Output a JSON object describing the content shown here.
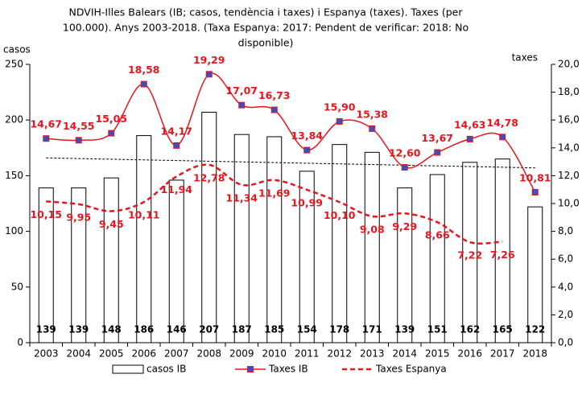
{
  "chart_data": {
    "type": "bar_line",
    "title_lines": [
      "NDVIH-Illes Balears (IB; casos, tendència i taxes) i Espanya (taxes). Taxes (per",
      "100.000). Anys 2003-2018. (Taxa Espanya: 2017: Pendent de verificar: 2018: No",
      "disponible)"
    ],
    "y_label": "casos",
    "y2_label": "taxes",
    "categories": [
      "2003",
      "2004",
      "2005",
      "2006",
      "2007",
      "2008",
      "2009",
      "2010",
      "2011",
      "2012",
      "2013",
      "2014",
      "2015",
      "2016",
      "2017",
      "2018"
    ],
    "ylim": [
      0,
      250
    ],
    "yticks": [
      0,
      50,
      100,
      150,
      200,
      250
    ],
    "y2lim": [
      0,
      20
    ],
    "y2ticks": [
      {
        "value": 0,
        "label": "0,0"
      },
      {
        "value": 2,
        "label": "2,0"
      },
      {
        "value": 4,
        "label": "4,0"
      },
      {
        "value": 6,
        "label": "6,0"
      },
      {
        "value": 8,
        "label": "8,0"
      },
      {
        "value": 10,
        "label": "10,0"
      },
      {
        "value": 12,
        "label": "12,0"
      },
      {
        "value": 14,
        "label": "14,0"
      },
      {
        "value": 16,
        "label": "16,0"
      },
      {
        "value": 18,
        "label": "18,0"
      },
      {
        "value": 20,
        "label": "20,0"
      }
    ],
    "series": [
      {
        "name": "casos IB",
        "kind": "bar",
        "color": "#ffffff",
        "values": [
          139,
          139,
          148,
          186,
          146,
          207,
          187,
          185,
          154,
          178,
          171,
          139,
          151,
          162,
          165,
          122
        ]
      },
      {
        "name": "Taxes IB",
        "kind": "line",
        "axis": "y2",
        "color": "#e8141b",
        "marker_color": "#3b4fc4",
        "dash": false,
        "values": [
          14.67,
          14.55,
          15.05,
          18.58,
          14.17,
          19.29,
          17.07,
          16.73,
          13.84,
          15.9,
          15.38,
          12.6,
          13.67,
          14.63,
          14.78,
          10.81
        ],
        "value_labels": [
          "14,67",
          "14,55",
          "15,05",
          "18,58",
          "14,17",
          "19,29",
          "17,07",
          "16,73",
          "13,84",
          "15,90",
          "15,38",
          "12,60",
          "13,67",
          "14,63",
          "14,78",
          "10,81"
        ]
      },
      {
        "name": "Taxes Espanya",
        "kind": "line",
        "axis": "y2",
        "color": "#e8141b",
        "dash": true,
        "values": [
          10.15,
          9.95,
          9.45,
          10.11,
          11.94,
          12.78,
          11.34,
          11.69,
          10.99,
          10.1,
          9.08,
          9.29,
          8.66,
          7.22,
          7.26,
          null
        ],
        "value_labels": [
          "10,15",
          "9,95",
          "9,45",
          "10,11",
          "11,94",
          "12,78",
          "11,34",
          "11,69",
          "10,99",
          "10,10",
          "9,08",
          "9,29",
          "8,66",
          "7,22",
          "7,26",
          null
        ]
      }
    ],
    "trendline": [
      166,
      157
    ]
  }
}
